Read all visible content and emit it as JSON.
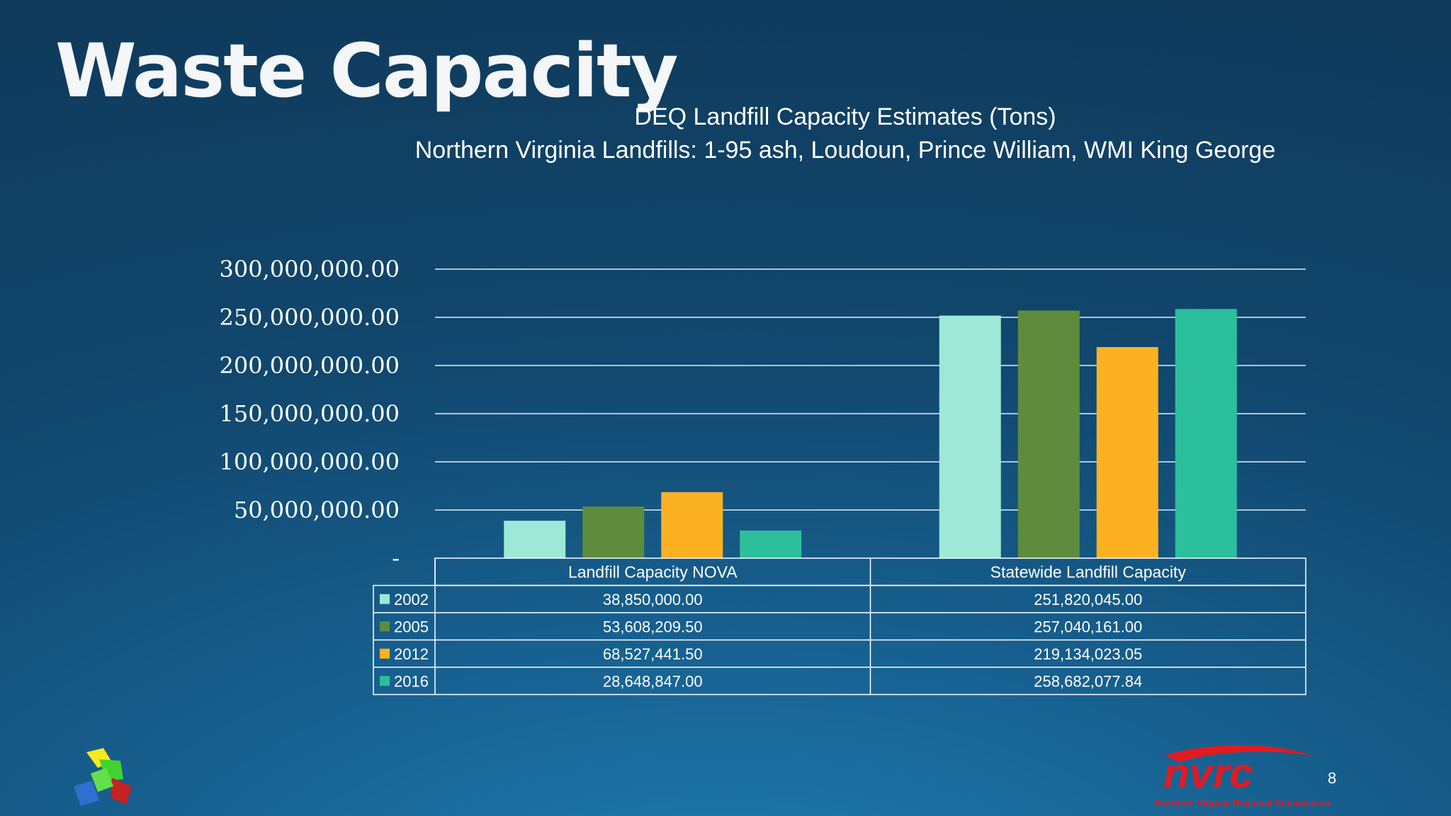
{
  "slide": {
    "title": "Waste Capacity",
    "page_number": "8",
    "footer_logo_text": "nvrc",
    "footer_logo_subtext": "Northern Virginia Regional Commission"
  },
  "colors": {
    "2002": "#9de8d6",
    "2005": "#5e8c3c",
    "2012": "#fbb122",
    "2016": "#2bbf9c",
    "gridline": "#ffffff"
  },
  "chart_data": {
    "type": "bar",
    "title": "DEQ Landfill Capacity Estimates (Tons)",
    "subtitle": "Northern Virginia Landfills: 1-95 ash, Loudoun, Prince William, WMI King George",
    "categories": [
      "Landfill Capacity NOVA",
      "Statewide Landfill Capacity"
    ],
    "series": [
      {
        "name": "2002",
        "values": [
          38850000.0,
          251820045.0
        ],
        "labels": [
          "38,850,000.00",
          "251,820,045.00"
        ]
      },
      {
        "name": "2005",
        "values": [
          53608209.5,
          257040161.0
        ],
        "labels": [
          "53,608,209.50",
          "257,040,161.00"
        ]
      },
      {
        "name": "2012",
        "values": [
          68527441.5,
          219134023.05
        ],
        "labels": [
          "68,527,441.50",
          "219,134,023.05"
        ]
      },
      {
        "name": "2016",
        "values": [
          28648847.0,
          258682077.84
        ],
        "labels": [
          "28,648,847.00",
          "258,682,077.84"
        ]
      }
    ],
    "ylim": [
      0,
      300000000
    ],
    "yticks": [
      0,
      50000000,
      100000000,
      150000000,
      200000000,
      250000000,
      300000000
    ],
    "ytick_labels": [
      "-",
      "50,000,000.00",
      "100,000,000.00",
      "150,000,000.00",
      "200,000,000.00",
      "250,000,000.00",
      "300,000,000.00"
    ],
    "grid": true,
    "legend": "data table below chart",
    "data_table": true
  }
}
